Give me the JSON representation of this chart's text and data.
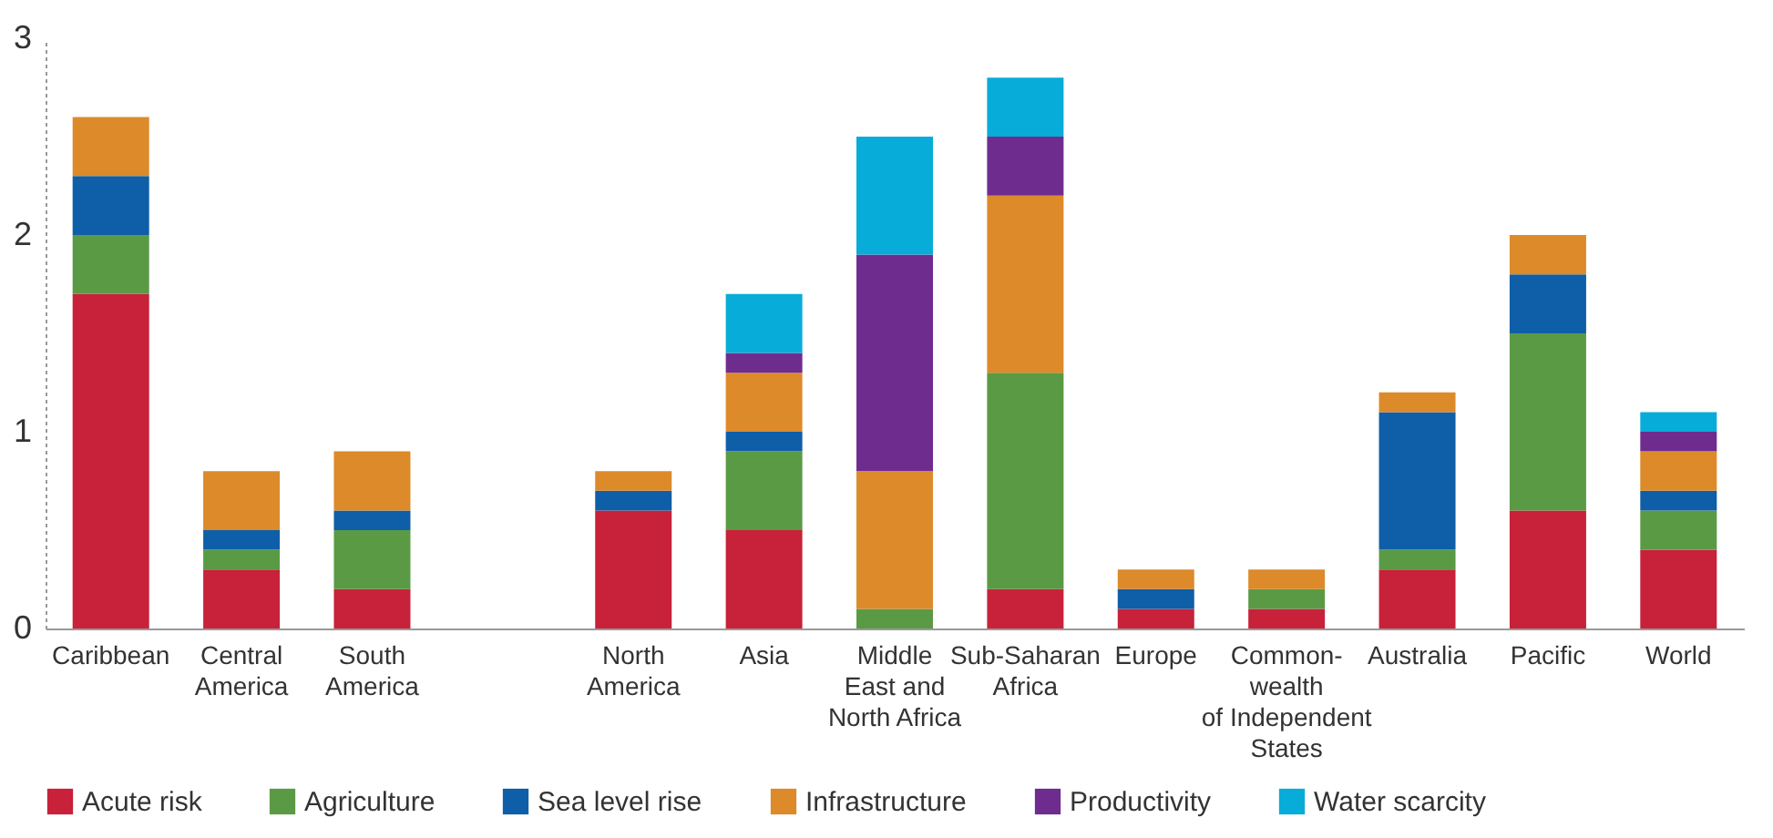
{
  "chart_data": {
    "type": "bar",
    "stacked": true,
    "categories": [
      "Caribbean",
      "Central\nAmerica",
      "South\nAmerica",
      null,
      "North\nAmerica",
      "Asia",
      "Middle\nEast and\nNorth Africa",
      "Sub-Saharan\nAfrica",
      "Europe",
      "Common-\nwealth\nof Independent\nStates",
      "Australia",
      "Pacific",
      "World"
    ],
    "series": [
      {
        "name": "Acute risk",
        "color": "#c8213a",
        "values": [
          1.7,
          0.3,
          0.2,
          null,
          0.6,
          0.5,
          null,
          0.2,
          0.1,
          0.1,
          0.3,
          0.6,
          0.4
        ]
      },
      {
        "name": "Agriculture",
        "color": "#5a9a45",
        "values": [
          0.3,
          0.1,
          0.3,
          null,
          null,
          0.4,
          0.1,
          1.1,
          null,
          0.1,
          0.1,
          0.9,
          0.2
        ]
      },
      {
        "name": "Sea level rise",
        "color": "#0f5ea8",
        "values": [
          0.3,
          0.1,
          0.1,
          null,
          0.1,
          0.1,
          null,
          null,
          0.1,
          null,
          0.7,
          0.3,
          0.1
        ]
      },
      {
        "name": "Infrastructure",
        "color": "#dd8a2b",
        "values": [
          0.3,
          0.3,
          0.3,
          null,
          0.1,
          0.3,
          0.7,
          0.9,
          0.1,
          0.1,
          0.1,
          0.2,
          0.2
        ]
      },
      {
        "name": "Productivity",
        "color": "#6f2c8f",
        "values": [
          null,
          null,
          null,
          null,
          null,
          0.1,
          1.1,
          0.3,
          null,
          null,
          null,
          null,
          0.1
        ]
      },
      {
        "name": "Water scarcity",
        "color": "#08acd8",
        "values": [
          null,
          null,
          null,
          null,
          null,
          0.3,
          0.6,
          0.3,
          null,
          null,
          null,
          null,
          0.1
        ]
      }
    ],
    "ylim": [
      0,
      3
    ],
    "yticks": [
      0,
      1,
      2,
      3
    ],
    "grid": false,
    "legend": "bottom"
  }
}
